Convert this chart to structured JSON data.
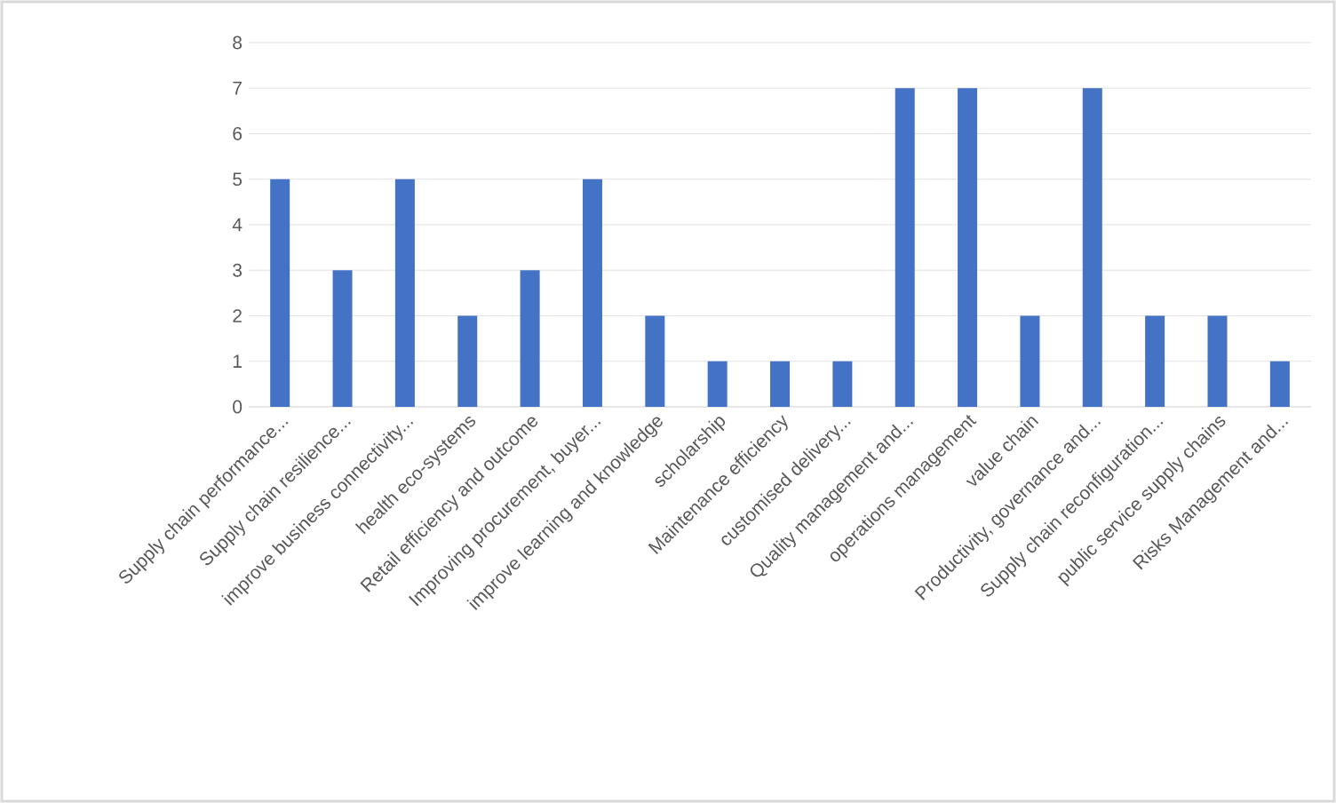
{
  "chart_data": {
    "type": "bar",
    "categories": [
      "Supply chain performance...",
      "Supply chain resilience...",
      "improve business connectivity...",
      "health eco-systems",
      "Retail efficiency and outcome",
      "Improving procurement, buyer...",
      "improve  learning and knowledge",
      "scholarship",
      "Maintenance efficiency",
      "customised  delivery...",
      "Quality management and...",
      "operations management",
      "value chain",
      "Productivity, governance and...",
      "Supply chain reconfiguration...",
      "public service supply chains",
      "Risks Management and..."
    ],
    "values": [
      5,
      3,
      5,
      2,
      3,
      5,
      2,
      1,
      1,
      1,
      7,
      7,
      2,
      7,
      2,
      2,
      1
    ],
    "color": "#4472c4",
    "ylim": [
      0,
      8
    ],
    "yticks": [
      0,
      1,
      2,
      3,
      4,
      5,
      6,
      7,
      8
    ],
    "grid": "y"
  }
}
